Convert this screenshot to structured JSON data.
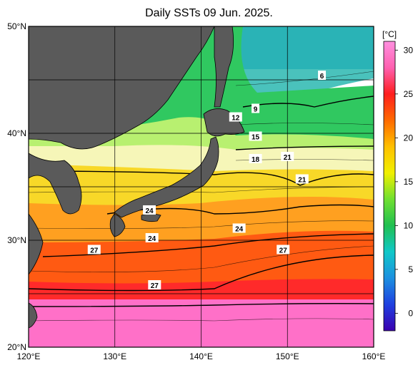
{
  "title": "Daily SSTs 09 Jun. 2025.",
  "map": {
    "lon_range": [
      120,
      160
    ],
    "lat_range": [
      20,
      50
    ],
    "lon_ticks": [
      "120°E",
      "130°E",
      "140°E",
      "150°E",
      "160°E"
    ],
    "lat_ticks": [
      "50°N",
      "40°N",
      "30°N",
      "20°N"
    ],
    "grid": true,
    "land_color": "#5a5a5a"
  },
  "colorbar": {
    "unit": "[°C]",
    "ticks": [
      "30",
      "25",
      "20",
      "15",
      "10",
      "5",
      "0"
    ],
    "range": [
      -2,
      31
    ],
    "stops": [
      "#3a00b0",
      "#1f40e0",
      "#1c90e0",
      "#10c8c8",
      "#20c050",
      "#70e030",
      "#f0f000",
      "#ffc000",
      "#ff6a00",
      "#ff1e1e",
      "#ff60b0",
      "#ff90e0"
    ]
  },
  "contour_labels": [
    {
      "text": "6",
      "lon": 154.0,
      "lat": 45.4
    },
    {
      "text": "9",
      "lon": 146.3,
      "lat": 42.3
    },
    {
      "text": "12",
      "lon": 144.0,
      "lat": 41.5
    },
    {
      "text": "15",
      "lon": 146.3,
      "lat": 39.7
    },
    {
      "text": "18",
      "lon": 146.3,
      "lat": 37.6
    },
    {
      "text": "21",
      "lon": 150.0,
      "lat": 37.8
    },
    {
      "text": "21",
      "lon": 151.7,
      "lat": 35.7
    },
    {
      "text": "24",
      "lon": 134.0,
      "lat": 32.8
    },
    {
      "text": "24",
      "lon": 134.3,
      "lat": 30.2
    },
    {
      "text": "24",
      "lon": 144.4,
      "lat": 31.1
    },
    {
      "text": "27",
      "lon": 127.6,
      "lat": 29.1
    },
    {
      "text": "27",
      "lon": 149.5,
      "lat": 29.1
    },
    {
      "text": "27",
      "lon": 134.6,
      "lat": 25.8
    }
  ]
}
